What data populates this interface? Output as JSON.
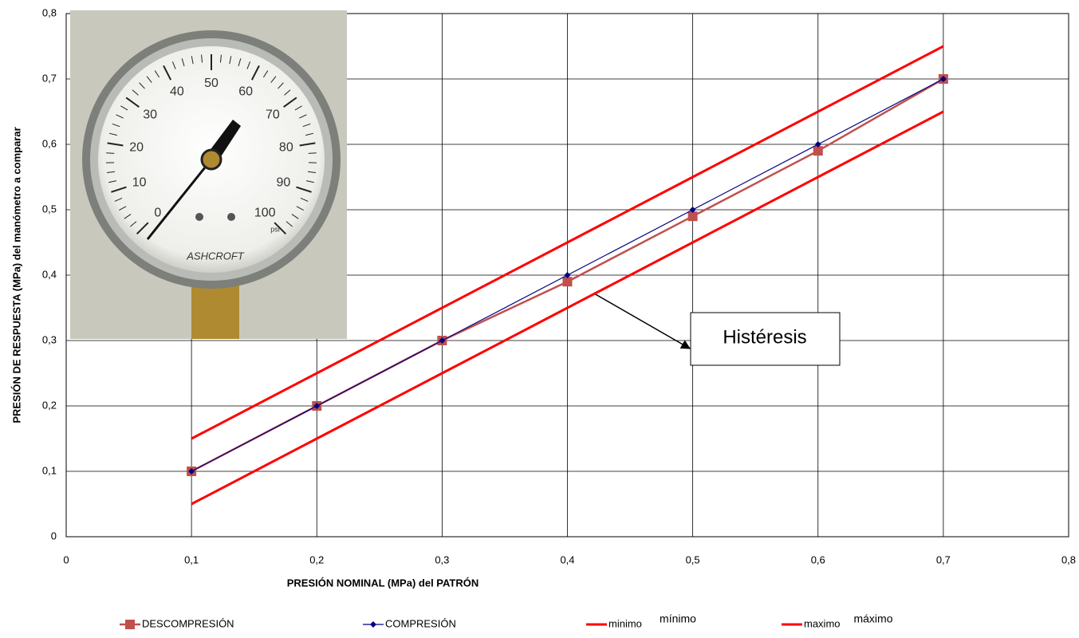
{
  "chart_data": {
    "type": "line",
    "xlabel": "PRESIÓN NOMINAL (MPa) del PATRÓN",
    "ylabel": "PRESIÓN DE RESPUESTA  (MPa) del manómetro  a comparar",
    "x": [
      0.1,
      0.2,
      0.3,
      0.4,
      0.5,
      0.6,
      0.7
    ],
    "series": [
      {
        "name": "DESCOMPRESIÓN",
        "color": "#c0504d",
        "marker": "square",
        "width": 2.5,
        "values": [
          0.1,
          0.2,
          0.3,
          0.39,
          0.49,
          0.59,
          0.7
        ]
      },
      {
        "name": "COMPRESIÓN",
        "color": "#000080",
        "marker": "diamond",
        "width": 1.2,
        "values": [
          0.1,
          0.2,
          0.3,
          0.4,
          0.5,
          0.6,
          0.7
        ]
      },
      {
        "name": "minimo",
        "color": "#ff0000",
        "marker": "none",
        "width": 3,
        "values": [
          0.05,
          0.15,
          0.25,
          0.35,
          0.45,
          0.55,
          0.65
        ]
      },
      {
        "name": "maximo",
        "color": "#ff0000",
        "marker": "none",
        "width": 3,
        "values": [
          0.15,
          0.25,
          0.35,
          0.45,
          0.55,
          0.65,
          0.75
        ]
      }
    ],
    "legend_extra": [
      "mínimo",
      "máximo"
    ],
    "annotation": "Histéresis",
    "xlim": [
      0,
      0.8
    ],
    "ylim": [
      0,
      0.8
    ],
    "xticks": [
      0,
      {
        "value": 0.1,
        "label": "0,1"
      },
      {
        "value": 0.2,
        "label": "0,2"
      },
      {
        "value": 0.3,
        "label": "0,3"
      },
      {
        "value": 0.4,
        "label": "0,4"
      },
      {
        "value": 0.5,
        "label": "0,5"
      },
      {
        "value": 0.6,
        "label": "0,6"
      },
      {
        "value": 0.7,
        "label": "0,7"
      },
      {
        "value": 0.8,
        "label": "0,8"
      }
    ],
    "yticks": [
      0,
      {
        "value": 0.1,
        "label": "0,1"
      },
      {
        "value": 0.2,
        "label": "0,2"
      },
      {
        "value": 0.3,
        "label": "0,3"
      },
      {
        "value": 0.4,
        "label": "0,4"
      },
      {
        "value": 0.5,
        "label": "0,5"
      },
      {
        "value": 0.6,
        "label": "0,6"
      },
      {
        "value": 0.7,
        "label": "0,7"
      },
      {
        "value": 0.8,
        "label": "0,8"
      }
    ],
    "grid": true,
    "legend": "bottom",
    "inset": {
      "dial_labels": [
        "0",
        "10",
        "20",
        "30",
        "40",
        "50",
        "60",
        "70",
        "80",
        "90",
        "100"
      ],
      "unit": "psi",
      "brand": "ASHCROFT"
    }
  }
}
